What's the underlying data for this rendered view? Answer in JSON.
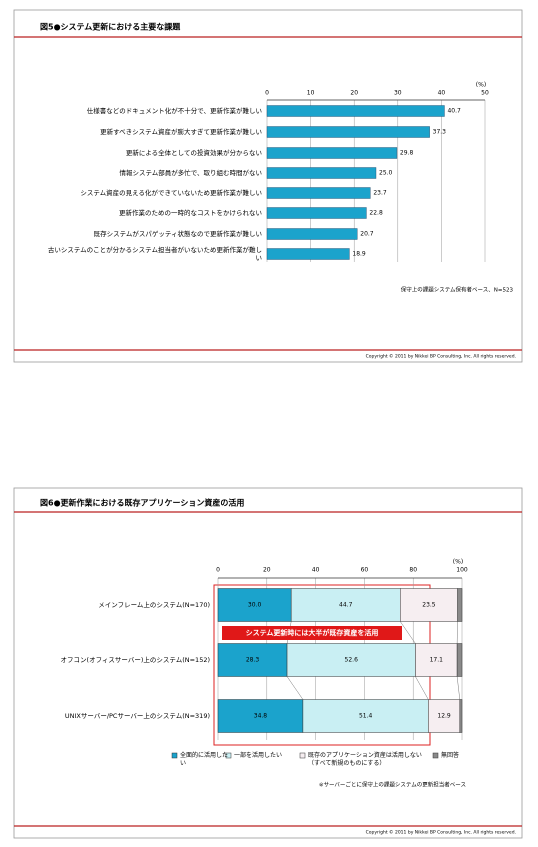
{
  "chart_data": [
    {
      "type": "bar",
      "orientation": "horizontal",
      "title": "図5●システム更新における主要な課題",
      "unit": "(%)",
      "categories": [
        "仕様書などのドキュメント化が不十分で、更新作業が難しい",
        "更新すべきシステム資産が膨大すぎて更新作業が難しい",
        "更新による全体としての投資効果が分からない",
        "情報システム部員が多忙で、取り組む時間がない",
        "システム資産の見える化ができていないため更新作業が難しい",
        "更新作業のための一時的なコストをかけられない",
        "既存システムがスパゲッティ状態なので更新作業が難しい",
        "古いシステムのことが分かるシステム担当者がいないため更新作業が難しい"
      ],
      "values": [
        40.7,
        37.3,
        29.8,
        25.0,
        23.7,
        22.8,
        20.7,
        18.9
      ],
      "value_labels": [
        "40.7",
        "37.3",
        "29.8",
        "25.0",
        "23.7",
        "22.8",
        "20.7",
        "18.9"
      ],
      "color": "#1ba3cc",
      "xlim": [
        0,
        50
      ],
      "xticks": [
        0,
        10,
        20,
        30,
        40,
        50
      ],
      "grid": true,
      "note": "保守上の課題システム保有者ベース、N=523"
    },
    {
      "type": "stacked_bar",
      "orientation": "horizontal",
      "title": "図6●更新作業における既存アプリケーション資産の活用",
      "unit": "(%)",
      "categories": [
        "メインフレーム上のシステム(N=170)",
        "オフコン(オフィスサーバー)上のシステム(N=152)",
        "UNIXサーバー/PCサーバー上のシステム(N=319)"
      ],
      "series": [
        {
          "name": "全面的に活用したい",
          "color": "#1ba3cc",
          "values": [
            30.0,
            28.3,
            34.8
          ],
          "value_labels": [
            "30.0",
            "28.3",
            "34.8"
          ]
        },
        {
          "name": "一部を活用したい",
          "color": "#c9eff3",
          "values": [
            44.7,
            52.6,
            51.4
          ],
          "value_labels": [
            "44.7",
            "52.6",
            "51.4"
          ]
        },
        {
          "name": "既存のアプリケーション資産は活用しない（すべて新規のものにする）",
          "color": "#f6eef1",
          "values": [
            23.5,
            17.1,
            12.9
          ],
          "value_labels": [
            "23.5",
            "17.1",
            "12.9"
          ]
        },
        {
          "name": "無回答",
          "color": "#8a8a8a",
          "values": [
            1.8,
            2.0,
            0.9
          ]
        }
      ],
      "xlim": [
        0,
        100
      ],
      "xticks": [
        0,
        20,
        40,
        60,
        80,
        100
      ],
      "grid": true,
      "annotation": "システム更新時には大半が既存資産を活用",
      "note": "※サーバーごとに保守上の課題システムの更新担当者ベース"
    }
  ],
  "copyright": "Copyright © 2011 by Nikkei BP Consulting, Inc. All rights reserved."
}
